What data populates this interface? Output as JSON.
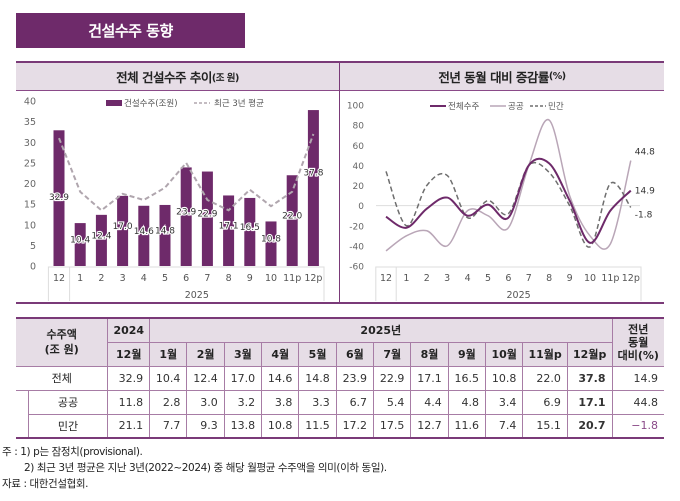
{
  "page_title": "건설수주 동향",
  "chart_data": [
    {
      "type": "bar",
      "title": "전체 건설수주 추이",
      "title_unit": "(조 원)",
      "categories": [
        "12",
        "1",
        "2",
        "3",
        "4",
        "5",
        "6",
        "7",
        "8",
        "9",
        "10",
        "11p",
        "12p"
      ],
      "x_group_label": "2025",
      "ylim": [
        0,
        40
      ],
      "yticks": [
        0,
        5,
        10,
        15,
        20,
        25,
        30,
        35,
        40
      ],
      "legend": [
        "건설수주(조원)",
        "최근 3년 평균"
      ],
      "legend_position": "top",
      "series": [
        {
          "name": "건설수주(조원)",
          "kind": "bar",
          "color": "#6e2a6a",
          "values": [
            32.9,
            10.4,
            12.4,
            17.0,
            14.6,
            14.8,
            23.9,
            22.9,
            17.1,
            16.5,
            10.8,
            22.0,
            37.8
          ],
          "labels": [
            "32.9",
            "10.4",
            "12.4",
            "17.0",
            "14.6",
            "14.8",
            "23.9",
            "22.9",
            "17.1",
            "16.5",
            "10.8",
            "22.0",
            "37.8"
          ]
        },
        {
          "name": "최근 3년 평균",
          "kind": "line-dashed",
          "color": "#b0a6ae",
          "values": [
            31,
            18,
            13.5,
            17.5,
            16,
            19,
            25,
            16,
            13.5,
            18.5,
            14.5,
            18,
            32
          ]
        }
      ]
    },
    {
      "type": "line",
      "title": "전년 동월 대비 증감률",
      "title_unit": "(%)",
      "categories": [
        "12",
        "1",
        "2",
        "3",
        "4",
        "5",
        "6",
        "7",
        "8",
        "9",
        "10",
        "11p",
        "12p"
      ],
      "x_group_label": "2025",
      "ylim": [
        -60,
        100
      ],
      "yticks": [
        -60,
        -40,
        -20,
        0,
        20,
        40,
        60,
        80,
        100
      ],
      "legend": [
        "전체수주",
        "공공",
        "민간"
      ],
      "legend_position": "top",
      "series": [
        {
          "name": "전체수주",
          "kind": "solid",
          "color": "#6e2a6a",
          "values": [
            -11,
            -22,
            -3,
            8,
            -10,
            1,
            -12,
            40,
            42,
            5,
            -37,
            -5,
            14.9
          ],
          "end_label": "14.9"
        },
        {
          "name": "공공",
          "kind": "solid-light",
          "color": "#b9a6b7",
          "values": [
            -45,
            -30,
            -25,
            -40,
            -5,
            -10,
            -22,
            40,
            85,
            10,
            -30,
            -38,
            44.8
          ],
          "end_label": "44.8"
        },
        {
          "name": "민간",
          "kind": "dashed",
          "color": "#6e6e6e",
          "values": [
            34,
            -20,
            20,
            30,
            -12,
            5,
            -8,
            40,
            33,
            0,
            -41,
            22,
            -1.8
          ],
          "end_label": "-1.8"
        }
      ]
    }
  ],
  "table": {
    "corner_label": "수주액\n(조 원)",
    "year_2024": "2024",
    "year_2025": "2025년",
    "yoy_header": "전년\n동월\n대비(%)",
    "months": [
      "12월",
      "1월",
      "2월",
      "3월",
      "4월",
      "5월",
      "6월",
      "7월",
      "8월",
      "9월",
      "10월",
      "11월p",
      "12월p"
    ],
    "rows": [
      {
        "label": "전체",
        "values": [
          "32.9",
          "10.4",
          "12.4",
          "17.0",
          "14.6",
          "14.8",
          "23.9",
          "22.9",
          "17.1",
          "16.5",
          "10.8",
          "22.0",
          "37.8"
        ],
        "yoy": "14.9"
      },
      {
        "label": "공공",
        "values": [
          "11.8",
          "2.8",
          "3.0",
          "3.2",
          "3.8",
          "3.3",
          "6.7",
          "5.4",
          "4.4",
          "4.8",
          "3.4",
          "6.9",
          "17.1"
        ],
        "yoy": "44.8"
      },
      {
        "label": "민간",
        "values": [
          "21.1",
          "7.7",
          "9.3",
          "13.8",
          "10.8",
          "11.5",
          "17.2",
          "17.5",
          "12.7",
          "11.6",
          "7.4",
          "15.1",
          "20.7"
        ],
        "yoy": "−1.8"
      }
    ]
  },
  "notes": {
    "note1": "주 : 1) p는 잠정치(provisional).",
    "note2": "2) 최근 3년 평균은 지난 3년(2022~2024) 중 해당 월평균 수주액을 의미(이하 동일).",
    "source": "자료 : 대한건설협회."
  }
}
